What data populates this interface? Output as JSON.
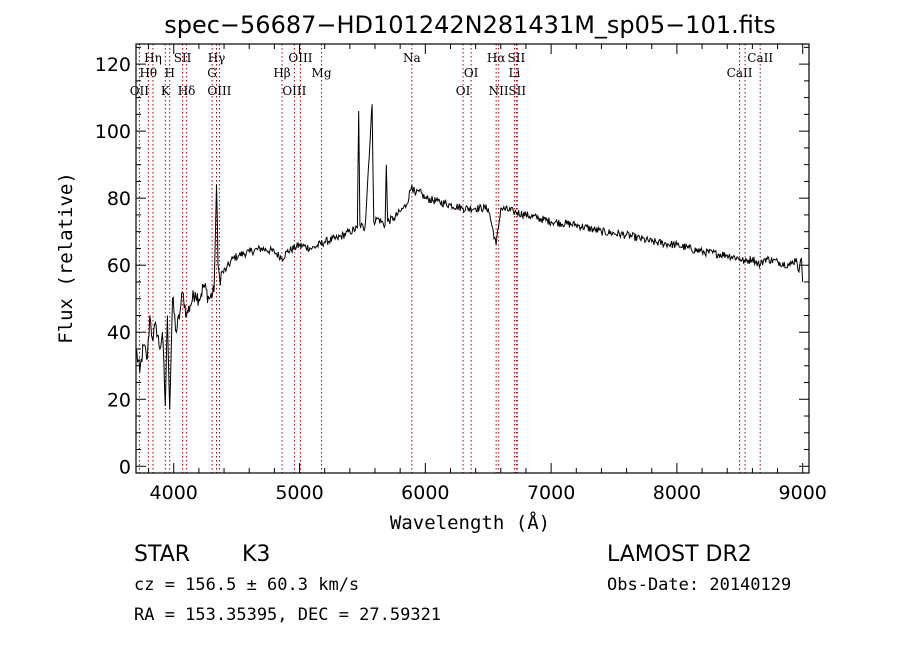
{
  "chart_data": {
    "type": "line",
    "title": "spec−56687−HD101242N281431M_sp05−101.fits",
    "xlabel": "Wavelength (Å)",
    "ylabel": "Flux (relative)",
    "xlim": [
      3700,
      9050
    ],
    "ylim": [
      -2,
      126
    ],
    "xticks": [
      4000,
      5000,
      6000,
      7000,
      8000,
      9000
    ],
    "yticks": [
      0,
      20,
      40,
      60,
      80,
      100,
      120
    ],
    "grid": false,
    "series": [
      {
        "color": "#000000",
        "x": [
          3700,
          3730,
          3760,
          3790,
          3810,
          3830,
          3860,
          3890,
          3910,
          3933,
          3950,
          3968,
          3990,
          4020,
          4050,
          4070,
          4102,
          4130,
          4170,
          4200,
          4240,
          4280,
          4320,
          4340,
          4352,
          4365,
          4390,
          4420,
          4470,
          4520,
          4600,
          4700,
          4800,
          4861,
          4900,
          5000,
          5100,
          5200,
          5300,
          5400,
          5460,
          5470,
          5480,
          5520,
          5577,
          5590,
          5620,
          5680,
          5690,
          5700,
          5750,
          5800,
          5850,
          5893,
          5920,
          5950,
          6000,
          6100,
          6200,
          6300,
          6400,
          6500,
          6563,
          6600,
          6700,
          6800,
          6900,
          7000,
          7200,
          7400,
          7600,
          7800,
          8000,
          8200,
          8400,
          8500,
          8542,
          8600,
          8662,
          8700,
          8800,
          8900,
          8950,
          8970,
          8990,
          9000
        ],
        "y": [
          35,
          28,
          36,
          32,
          45,
          38,
          42,
          35,
          40,
          18,
          45,
          17,
          50,
          40,
          46,
          52,
          45,
          48,
          52,
          50,
          54,
          50,
          52,
          84,
          60,
          56,
          58,
          59,
          62,
          63,
          64,
          65,
          64,
          62,
          64,
          66,
          65,
          67,
          68,
          70,
          71,
          106,
          72,
          71,
          108,
          73,
          74,
          72,
          90,
          73,
          74,
          76,
          78,
          84,
          81,
          82,
          80,
          79,
          78,
          77,
          77,
          77,
          66,
          77,
          76,
          75,
          74,
          73,
          72,
          70,
          69,
          67,
          66,
          64,
          63,
          62,
          61,
          62,
          60,
          62,
          61,
          60,
          62,
          58,
          62,
          55
        ]
      }
    ],
    "spectral_lines": [
      {
        "label": "Hη",
        "wave": 3835,
        "row": 1
      },
      {
        "label": "Hθ",
        "wave": 3798,
        "row": 2
      },
      {
        "label": "OII",
        "wave": 3727,
        "row": 3
      },
      {
        "label": "SII",
        "wave": 4070,
        "row": 1
      },
      {
        "label": "H",
        "wave": 3968,
        "row": 2
      },
      {
        "label": "K",
        "wave": 3933,
        "row": 3
      },
      {
        "label": "Hδ",
        "wave": 4102,
        "row": 3
      },
      {
        "label": "Hγ",
        "wave": 4340,
        "row": 1
      },
      {
        "label": "G",
        "wave": 4305,
        "row": 2
      },
      {
        "label": "OIII",
        "wave": 4363,
        "row": 3
      },
      {
        "label": "OIII",
        "wave": 5007,
        "row": 1
      },
      {
        "label": "Hβ",
        "wave": 4861,
        "row": 2
      },
      {
        "label": "OIII",
        "wave": 4959,
        "row": 3
      },
      {
        "label": "Mg",
        "wave": 5175,
        "row": 2
      },
      {
        "label": "Na",
        "wave": 5893,
        "row": 1
      },
      {
        "label": "OI",
        "wave": 6364,
        "row": 2
      },
      {
        "label": "OI",
        "wave": 6300,
        "row": 3
      },
      {
        "label": "Hα",
        "wave": 6563,
        "row": 1
      },
      {
        "label": "SII",
        "wave": 6724,
        "row": 1
      },
      {
        "label": "Li",
        "wave": 6708,
        "row": 2
      },
      {
        "label": "NII",
        "wave": 6583,
        "row": 3
      },
      {
        "label": "SII",
        "wave": 6731,
        "row": 3
      },
      {
        "label": "CaII",
        "wave": 8662,
        "row": 1
      },
      {
        "label": "CaII",
        "wave": 8498,
        "row": 2
      },
      {
        "label": "",
        "wave": 8542,
        "row": 0
      }
    ],
    "line_color": "#a00000"
  },
  "info": {
    "object_class": "STAR",
    "subclass": "K3",
    "redshift": "cz = 156.5 ± 60.3 km/s",
    "coords": "RA = 153.35395, DEC =  27.59321",
    "survey": "LAMOST DR2",
    "obs_date": "Obs-Date: 20140129"
  }
}
